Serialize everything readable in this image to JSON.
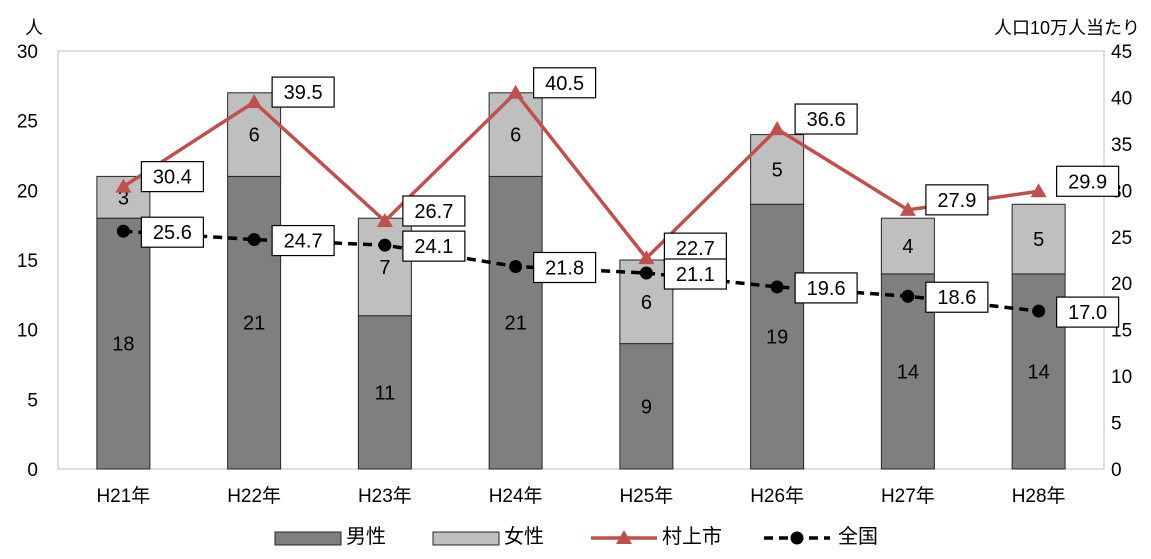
{
  "chart_data": {
    "type": "bar",
    "title": "",
    "left_axis_unit": "人",
    "right_axis_unit": "人口10万人当たり",
    "categories": [
      "H21年",
      "H22年",
      "H23年",
      "H24年",
      "H25年",
      "H26年",
      "H27年",
      "H28年"
    ],
    "left_axis": {
      "min": 0,
      "max": 30,
      "step": 5,
      "ticks": [
        "0",
        "5",
        "10",
        "15",
        "20",
        "25",
        "30"
      ]
    },
    "right_axis": {
      "min": 0,
      "max": 45,
      "step": 5,
      "ticks": [
        "0",
        "5",
        "10",
        "15",
        "20",
        "25",
        "30",
        "35",
        "40",
        "45"
      ]
    },
    "grid": false,
    "legend_position": "bottom",
    "series": [
      {
        "name": "男性",
        "type": "stacked-bar",
        "axis": "left",
        "color": "#7f7f7f",
        "values": [
          18,
          21,
          11,
          21,
          9,
          19,
          14,
          14
        ]
      },
      {
        "name": "女性",
        "type": "stacked-bar",
        "axis": "left",
        "color": "#bfbfbf",
        "values": [
          3,
          6,
          7,
          6,
          6,
          5,
          4,
          5
        ]
      },
      {
        "name": "村上市",
        "type": "line",
        "axis": "right",
        "color": "#c0504d",
        "marker": "triangle",
        "values": [
          30.4,
          39.5,
          26.7,
          40.5,
          22.7,
          36.6,
          27.9,
          29.9
        ],
        "labels": [
          "30.4",
          "39.5",
          "26.7",
          "40.5",
          "22.7",
          "36.6",
          "27.9",
          "29.9"
        ]
      },
      {
        "name": "全国",
        "type": "line",
        "axis": "right",
        "color": "#000000",
        "marker": "circle",
        "dashed": true,
        "values": [
          25.6,
          24.7,
          24.1,
          21.8,
          21.1,
          19.6,
          18.6,
          17.0
        ],
        "labels": [
          "25.6",
          "24.7",
          "24.1",
          "21.8",
          "21.1",
          "19.6",
          "18.6",
          "17.0"
        ]
      }
    ]
  }
}
